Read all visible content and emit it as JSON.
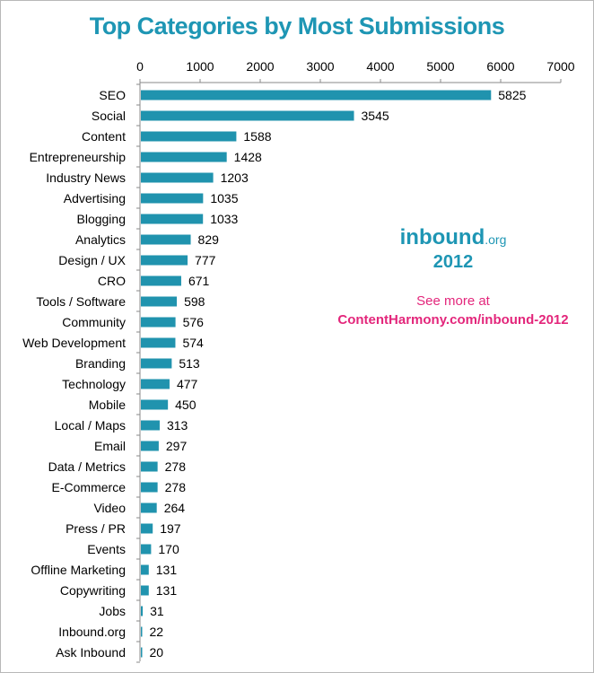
{
  "chart_data": {
    "type": "bar",
    "orientation": "horizontal",
    "title": "Top Categories by Most Submissions",
    "xlabel": "",
    "ylabel": "",
    "xlim": [
      0,
      7000
    ],
    "ticks": [
      0,
      1000,
      2000,
      3000,
      4000,
      5000,
      6000,
      7000
    ],
    "tick_labels": [
      "0",
      "1000",
      "2000",
      "3000",
      "4000",
      "5000",
      "6000",
      "7000"
    ],
    "axis_position": "top",
    "bar_color": "#2093ae",
    "categories": [
      "SEO",
      "Social",
      "Content",
      "Entrepreneurship",
      "Industry News",
      "Advertising",
      "Blogging",
      "Analytics",
      "Design / UX",
      "CRO",
      "Tools / Software",
      "Community",
      "Web Development",
      "Branding",
      "Technology",
      "Mobile",
      "Local / Maps",
      "Email",
      "Data / Metrics",
      "E-Commerce",
      "Video",
      "Press / PR",
      "Events",
      "Offline Marketing",
      "Copywriting",
      "Jobs",
      "Inbound.org",
      "Ask Inbound"
    ],
    "values": [
      5825,
      3545,
      1588,
      1428,
      1203,
      1035,
      1033,
      829,
      777,
      671,
      598,
      576,
      574,
      513,
      477,
      450,
      313,
      297,
      278,
      278,
      264,
      197,
      170,
      131,
      131,
      31,
      22,
      20
    ],
    "value_labels": [
      "5825",
      "3545",
      "1588",
      "1428",
      "1203",
      "1035",
      "1033",
      "829",
      "777",
      "671",
      "598",
      "576",
      "574",
      "513",
      "477",
      "450",
      "313",
      "297",
      "278",
      "278",
      "264",
      "197",
      "170",
      "131",
      "131",
      "31",
      "22",
      "20"
    ]
  },
  "promo": {
    "logo_main": "inbound",
    "logo_suffix": ".org",
    "year": "2012",
    "see_more": "See more at",
    "link": "ContentHarmony.com/inbound-2012"
  },
  "colors": {
    "title": "#1e96b4",
    "accent_pink": "#e3267b"
  }
}
